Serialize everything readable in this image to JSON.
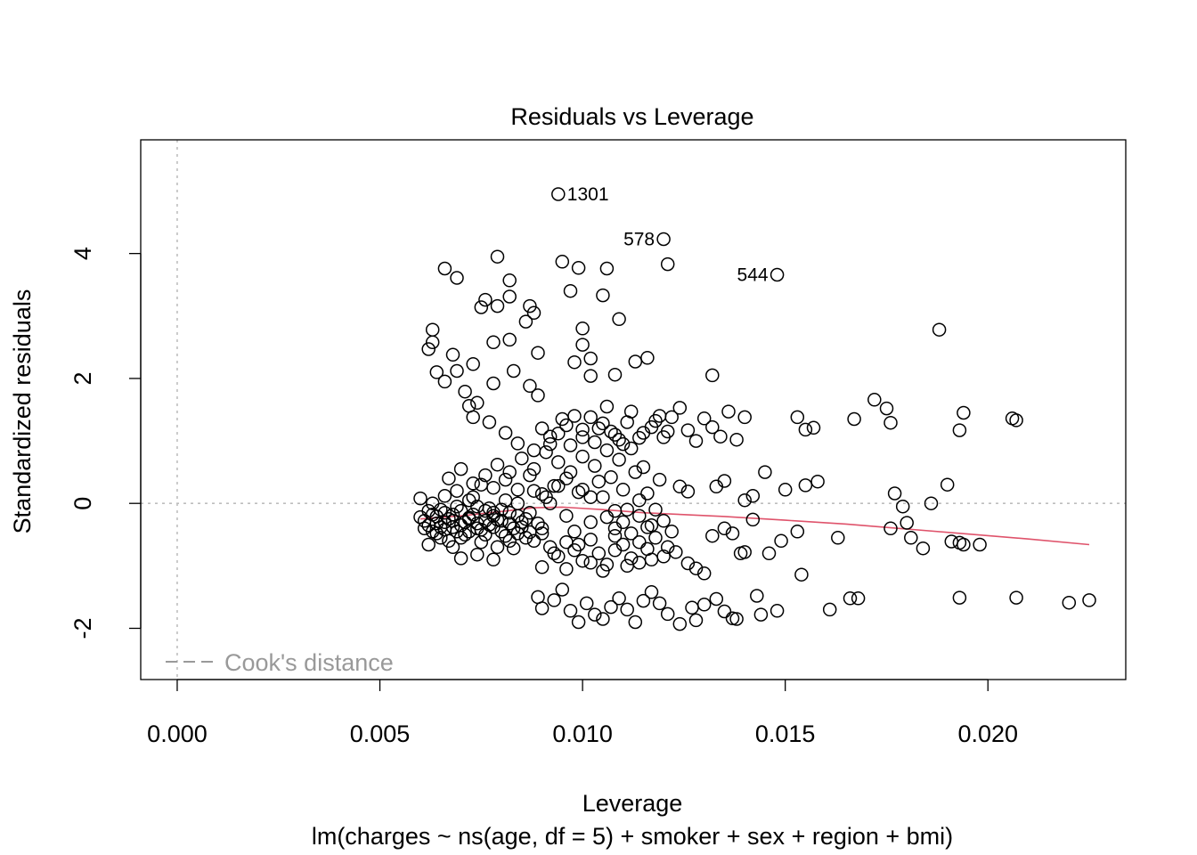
{
  "chart_data": {
    "type": "scatter",
    "title": "Residuals vs Leverage",
    "xlabel": "Leverage",
    "subtitle": "lm(charges ~ ns(age, df = 5) + smoker + sex + region + bmi)",
    "ylabel": "Standardized residuals",
    "xlim": [
      -0.0009,
      0.0234
    ],
    "ylim": [
      -2.82,
      5.82
    ],
    "x_ticks": [
      0.0,
      0.005,
      0.01,
      0.015,
      0.02
    ],
    "x_tick_labels": [
      "0.000",
      "0.005",
      "0.010",
      "0.015",
      "0.020"
    ],
    "y_ticks": [
      -2,
      0,
      2,
      4
    ],
    "y_tick_labels": [
      "-2",
      "0",
      "2",
      "4"
    ],
    "reference_lines": {
      "vertical_x": 0.0,
      "horizontal_y": 0.0
    },
    "legend": {
      "label": "Cook's distance",
      "placement": "bottom-left"
    },
    "colors": {
      "points": "#000000",
      "smooth": "#DF536B",
      "reference": "#BEBEBE",
      "legend": "#999999"
    },
    "labeled_points": [
      {
        "label": "1301",
        "x": 0.0094,
        "y": 4.95,
        "side": "right"
      },
      {
        "label": "578",
        "x": 0.012,
        "y": 4.23,
        "side": "left"
      },
      {
        "label": "544",
        "x": 0.0148,
        "y": 3.66,
        "side": "left"
      }
    ],
    "points": [
      [
        0.0095,
        3.87
      ],
      [
        0.0082,
        3.57
      ],
      [
        0.0079,
        3.95
      ],
      [
        0.0066,
        3.76
      ],
      [
        0.0069,
        3.61
      ],
      [
        0.0076,
        3.26
      ],
      [
        0.0075,
        3.14
      ],
      [
        0.0082,
        3.31
      ],
      [
        0.0087,
        3.16
      ],
      [
        0.0099,
        3.77
      ],
      [
        0.0106,
        3.76
      ],
      [
        0.0121,
        3.83
      ],
      [
        0.0097,
        3.4
      ],
      [
        0.0105,
        3.33
      ],
      [
        0.0109,
        2.95
      ],
      [
        0.01,
        2.8
      ],
      [
        0.01,
        2.54
      ],
      [
        0.0102,
        2.32
      ],
      [
        0.0113,
        2.27
      ],
      [
        0.0116,
        2.33
      ],
      [
        0.0098,
        2.26
      ],
      [
        0.0102,
        2.04
      ],
      [
        0.0108,
        2.06
      ],
      [
        0.0132,
        2.05
      ],
      [
        0.0188,
        2.78
      ],
      [
        0.0063,
        2.78
      ],
      [
        0.0062,
        2.47
      ],
      [
        0.0063,
        2.58
      ],
      [
        0.0068,
        2.38
      ],
      [
        0.0073,
        2.23
      ],
      [
        0.0078,
        2.58
      ],
      [
        0.0082,
        2.62
      ],
      [
        0.0089,
        2.41
      ],
      [
        0.0086,
        2.91
      ],
      [
        0.0088,
        3.05
      ],
      [
        0.0079,
        3.16
      ],
      [
        0.0064,
        2.1
      ],
      [
        0.0066,
        1.95
      ],
      [
        0.0069,
        2.12
      ],
      [
        0.0071,
        1.79
      ],
      [
        0.0072,
        1.56
      ],
      [
        0.0074,
        1.61
      ],
      [
        0.0078,
        1.92
      ],
      [
        0.0083,
        2.12
      ],
      [
        0.0087,
        1.88
      ],
      [
        0.0089,
        1.73
      ],
      [
        0.0073,
        1.38
      ],
      [
        0.0077,
        1.3
      ],
      [
        0.0081,
        1.13
      ],
      [
        0.0084,
        0.96
      ],
      [
        0.0088,
        0.85
      ],
      [
        0.0092,
        1.07
      ],
      [
        0.0095,
        1.35
      ],
      [
        0.0097,
        0.93
      ],
      [
        0.01,
        1.06
      ],
      [
        0.0102,
        1.38
      ],
      [
        0.0104,
        1.2
      ],
      [
        0.0106,
        1.55
      ],
      [
        0.0108,
        1.1
      ],
      [
        0.011,
        0.95
      ],
      [
        0.0112,
        1.47
      ],
      [
        0.0115,
        1.13
      ],
      [
        0.0118,
        1.32
      ],
      [
        0.012,
        1.06
      ],
      [
        0.0122,
        1.38
      ],
      [
        0.0124,
        1.53
      ],
      [
        0.0126,
        1.17
      ],
      [
        0.0128,
        1.0
      ],
      [
        0.013,
        1.36
      ],
      [
        0.0132,
        1.22
      ],
      [
        0.0134,
        1.07
      ],
      [
        0.0136,
        1.47
      ],
      [
        0.0138,
        1.02
      ],
      [
        0.014,
        1.38
      ],
      [
        0.0153,
        1.38
      ],
      [
        0.0155,
        1.18
      ],
      [
        0.0157,
        1.21
      ],
      [
        0.0167,
        1.35
      ],
      [
        0.0172,
        1.66
      ],
      [
        0.0175,
        1.52
      ],
      [
        0.0176,
        1.29
      ],
      [
        0.0193,
        1.17
      ],
      [
        0.0194,
        1.45
      ],
      [
        0.0206,
        1.36
      ],
      [
        0.0207,
        1.33
      ],
      [
        0.006,
        0.08
      ],
      [
        0.0062,
        -0.12
      ],
      [
        0.0064,
        -0.21
      ],
      [
        0.0066,
        -0.3
      ],
      [
        0.0068,
        -0.18
      ],
      [
        0.007,
        -0.35
      ],
      [
        0.0072,
        -0.23
      ],
      [
        0.0074,
        -0.4
      ],
      [
        0.0076,
        -0.28
      ],
      [
        0.0078,
        -0.15
      ],
      [
        0.008,
        -0.45
      ],
      [
        0.0082,
        -0.32
      ],
      [
        0.0084,
        -0.2
      ],
      [
        0.0086,
        -0.55
      ],
      [
        0.0088,
        -0.6
      ],
      [
        0.009,
        -0.48
      ],
      [
        0.0092,
        -0.7
      ],
      [
        0.0094,
        -0.85
      ],
      [
        0.0096,
        -0.62
      ],
      [
        0.0098,
        -0.75
      ],
      [
        0.01,
        -0.92
      ],
      [
        0.0102,
        -0.58
      ],
      [
        0.0104,
        -0.8
      ],
      [
        0.0106,
        -0.98
      ],
      [
        0.0108,
        -0.52
      ],
      [
        0.011,
        -0.66
      ],
      [
        0.0112,
        -0.88
      ],
      [
        0.0114,
        -0.95
      ],
      [
        0.0116,
        -0.73
      ],
      [
        0.0118,
        -0.55
      ],
      [
        0.012,
        -0.85
      ],
      [
        0.0123,
        -0.78
      ],
      [
        0.0126,
        -0.96
      ],
      [
        0.0128,
        -1.04
      ],
      [
        0.013,
        -1.12
      ],
      [
        0.0132,
        -0.52
      ],
      [
        0.0135,
        -0.4
      ],
      [
        0.0137,
        -0.48
      ],
      [
        0.0139,
        -0.8
      ],
      [
        0.014,
        -0.78
      ],
      [
        0.0142,
        -0.26
      ],
      [
        0.0146,
        -0.8
      ],
      [
        0.0149,
        -0.6
      ],
      [
        0.0153,
        -0.45
      ],
      [
        0.0154,
        -1.14
      ],
      [
        0.0163,
        -0.55
      ],
      [
        0.0176,
        -0.4
      ],
      [
        0.018,
        -0.31
      ],
      [
        0.0181,
        -0.55
      ],
      [
        0.0184,
        -0.72
      ],
      [
        0.0191,
        -0.61
      ],
      [
        0.0193,
        -0.63
      ],
      [
        0.0194,
        -0.66
      ],
      [
        0.0198,
        -0.66
      ],
      [
        0.0062,
        -0.66
      ],
      [
        0.0065,
        -0.55
      ],
      [
        0.0068,
        -0.7
      ],
      [
        0.007,
        -0.88
      ],
      [
        0.0074,
        -0.82
      ],
      [
        0.0078,
        -0.9
      ],
      [
        0.0063,
        0.0
      ],
      [
        0.0066,
        0.12
      ],
      [
        0.0069,
        0.2
      ],
      [
        0.0072,
        0.05
      ],
      [
        0.0075,
        0.3
      ],
      [
        0.0078,
        0.25
      ],
      [
        0.0081,
        0.38
      ],
      [
        0.0084,
        0.22
      ],
      [
        0.0087,
        0.45
      ],
      [
        0.009,
        0.15
      ],
      [
        0.0093,
        0.28
      ],
      [
        0.0096,
        0.4
      ],
      [
        0.0099,
        0.18
      ],
      [
        0.0102,
        0.1
      ],
      [
        0.0104,
        0.35
      ],
      [
        0.0107,
        0.42
      ],
      [
        0.011,
        0.22
      ],
      [
        0.0113,
        0.5
      ],
      [
        0.0116,
        0.16
      ],
      [
        0.0119,
        0.38
      ],
      [
        0.0124,
        0.27
      ],
      [
        0.0126,
        0.19
      ],
      [
        0.0133,
        0.27
      ],
      [
        0.0135,
        0.36
      ],
      [
        0.014,
        0.05
      ],
      [
        0.0142,
        0.12
      ],
      [
        0.0145,
        0.5
      ],
      [
        0.015,
        0.22
      ],
      [
        0.0155,
        0.29
      ],
      [
        0.0158,
        0.35
      ],
      [
        0.0177,
        0.16
      ],
      [
        0.0179,
        -0.05
      ],
      [
        0.0186,
        0.0
      ],
      [
        0.019,
        0.3
      ],
      [
        0.0089,
        -1.5
      ],
      [
        0.009,
        -1.68
      ],
      [
        0.0093,
        -1.55
      ],
      [
        0.0095,
        -1.38
      ],
      [
        0.0097,
        -1.72
      ],
      [
        0.0099,
        -1.9
      ],
      [
        0.0101,
        -1.6
      ],
      [
        0.0103,
        -1.78
      ],
      [
        0.0105,
        -1.85
      ],
      [
        0.0107,
        -1.66
      ],
      [
        0.0109,
        -1.52
      ],
      [
        0.0111,
        -1.7
      ],
      [
        0.0113,
        -1.9
      ],
      [
        0.0115,
        -1.56
      ],
      [
        0.0117,
        -1.42
      ],
      [
        0.0119,
        -1.6
      ],
      [
        0.0121,
        -1.77
      ],
      [
        0.0124,
        -1.93
      ],
      [
        0.0127,
        -1.67
      ],
      [
        0.0128,
        -1.87
      ],
      [
        0.013,
        -1.62
      ],
      [
        0.0133,
        -1.53
      ],
      [
        0.0135,
        -1.73
      ],
      [
        0.0137,
        -1.84
      ],
      [
        0.0138,
        -1.85
      ],
      [
        0.0143,
        -1.48
      ],
      [
        0.0144,
        -1.78
      ],
      [
        0.0148,
        -1.72
      ],
      [
        0.0161,
        -1.7
      ],
      [
        0.0166,
        -1.52
      ],
      [
        0.0168,
        -1.52
      ],
      [
        0.0193,
        -1.51
      ],
      [
        0.0207,
        -1.51
      ],
      [
        0.022,
        -1.59
      ],
      [
        0.0225,
        -1.55
      ],
      [
        0.0061,
        -0.4
      ],
      [
        0.0063,
        -0.45
      ],
      [
        0.0065,
        -0.1
      ],
      [
        0.0067,
        -0.6
      ],
      [
        0.0069,
        -0.05
      ],
      [
        0.0071,
        -0.5
      ],
      [
        0.0073,
        0.1
      ],
      [
        0.0075,
        -0.62
      ],
      [
        0.0077,
        -0.08
      ],
      [
        0.0079,
        -0.7
      ],
      [
        0.0081,
        0.05
      ],
      [
        0.0083,
        -0.72
      ],
      [
        0.0085,
        -0.38
      ],
      [
        0.0087,
        -0.15
      ],
      [
        0.0089,
        -0.32
      ],
      [
        0.0091,
        0.1
      ],
      [
        0.0064,
        -0.32
      ],
      [
        0.0066,
        -0.42
      ],
      [
        0.0068,
        -0.28
      ],
      [
        0.007,
        -0.12
      ],
      [
        0.0072,
        -0.45
      ],
      [
        0.0074,
        -0.05
      ],
      [
        0.0076,
        -0.5
      ],
      [
        0.0078,
        -0.2
      ],
      [
        0.008,
        -0.1
      ],
      [
        0.0082,
        -0.6
      ],
      [
        0.0084,
        0.0
      ],
      [
        0.0086,
        -0.25
      ],
      [
        0.0088,
        0.2
      ],
      [
        0.009,
        -0.4
      ],
      [
        0.0092,
        0.0
      ],
      [
        0.0094,
        0.28
      ],
      [
        0.0096,
        -0.2
      ],
      [
        0.0098,
        -0.45
      ],
      [
        0.01,
        0.22
      ],
      [
        0.0102,
        -0.3
      ],
      [
        0.0105,
        0.1
      ],
      [
        0.0108,
        -0.4
      ],
      [
        0.0111,
        -0.1
      ],
      [
        0.0114,
        0.05
      ],
      [
        0.0117,
        -0.35
      ],
      [
        0.006,
        -0.22
      ],
      [
        0.0062,
        -0.35
      ],
      [
        0.0064,
        -0.48
      ],
      [
        0.0066,
        -0.15
      ],
      [
        0.0068,
        -0.38
      ],
      [
        0.007,
        -0.55
      ],
      [
        0.0072,
        -0.25
      ],
      [
        0.0074,
        -0.32
      ],
      [
        0.0076,
        -0.12
      ],
      [
        0.0078,
        -0.38
      ],
      [
        0.008,
        -0.28
      ],
      [
        0.0082,
        -0.15
      ],
      [
        0.0084,
        -0.48
      ],
      [
        0.0061,
        -0.28
      ],
      [
        0.0063,
        -0.18
      ],
      [
        0.0065,
        -0.38
      ],
      [
        0.0067,
        -0.25
      ],
      [
        0.0069,
        -0.45
      ],
      [
        0.0071,
        -0.3
      ],
      [
        0.0073,
        -0.18
      ],
      [
        0.0075,
        -0.42
      ],
      [
        0.0077,
        -0.34
      ],
      [
        0.0079,
        -0.26
      ],
      [
        0.0081,
        -0.52
      ],
      [
        0.0083,
        -0.4
      ],
      [
        0.0085,
        -0.3
      ],
      [
        0.0087,
        -0.46
      ],
      [
        0.0067,
        0.4
      ],
      [
        0.007,
        0.55
      ],
      [
        0.0073,
        0.32
      ],
      [
        0.0076,
        0.45
      ],
      [
        0.0079,
        0.62
      ],
      [
        0.0082,
        0.5
      ],
      [
        0.0085,
        0.72
      ],
      [
        0.0088,
        0.55
      ],
      [
        0.0091,
        0.82
      ],
      [
        0.0094,
        0.66
      ],
      [
        0.0097,
        0.5
      ],
      [
        0.01,
        0.75
      ],
      [
        0.0103,
        0.6
      ],
      [
        0.0106,
        0.85
      ],
      [
        0.0109,
        0.7
      ],
      [
        0.0112,
        0.88
      ],
      [
        0.0115,
        0.58
      ],
      [
        0.009,
        1.2
      ],
      [
        0.0092,
        0.95
      ],
      [
        0.0094,
        1.12
      ],
      [
        0.0096,
        1.25
      ],
      [
        0.0098,
        1.4
      ],
      [
        0.01,
        1.18
      ],
      [
        0.0103,
        0.98
      ],
      [
        0.0105,
        1.28
      ],
      [
        0.0107,
        1.15
      ],
      [
        0.0109,
        1.02
      ],
      [
        0.0111,
        1.3
      ],
      [
        0.0114,
        1.05
      ],
      [
        0.0117,
        1.22
      ],
      [
        0.0119,
        1.4
      ],
      [
        0.0121,
        1.15
      ],
      [
        0.009,
        -1.02
      ],
      [
        0.0093,
        -0.8
      ],
      [
        0.0096,
        -1.05
      ],
      [
        0.0099,
        -0.66
      ],
      [
        0.0102,
        -0.95
      ],
      [
        0.0105,
        -1.08
      ],
      [
        0.0108,
        -0.75
      ],
      [
        0.0111,
        -1.0
      ],
      [
        0.0114,
        -0.62
      ],
      [
        0.0117,
        -0.9
      ],
      [
        0.0121,
        -0.7
      ],
      [
        0.0106,
        -0.22
      ],
      [
        0.0108,
        -0.12
      ],
      [
        0.011,
        -0.3
      ],
      [
        0.0112,
        -0.48
      ],
      [
        0.0114,
        -0.2
      ],
      [
        0.0116,
        -0.38
      ],
      [
        0.0118,
        -0.1
      ],
      [
        0.012,
        -0.28
      ],
      [
        0.0122,
        -0.45
      ]
    ],
    "smooth_line": {
      "x": [
        0.006,
        0.007,
        0.008,
        0.0088,
        0.0095,
        0.0105,
        0.0115,
        0.0125,
        0.0135,
        0.015,
        0.0165,
        0.018,
        0.0195,
        0.021,
        0.0225
      ],
      "y": [
        -0.25,
        -0.2,
        -0.13,
        -0.07,
        -0.06,
        -0.1,
        -0.15,
        -0.18,
        -0.21,
        -0.27,
        -0.33,
        -0.41,
        -0.49,
        -0.57,
        -0.66
      ]
    }
  }
}
